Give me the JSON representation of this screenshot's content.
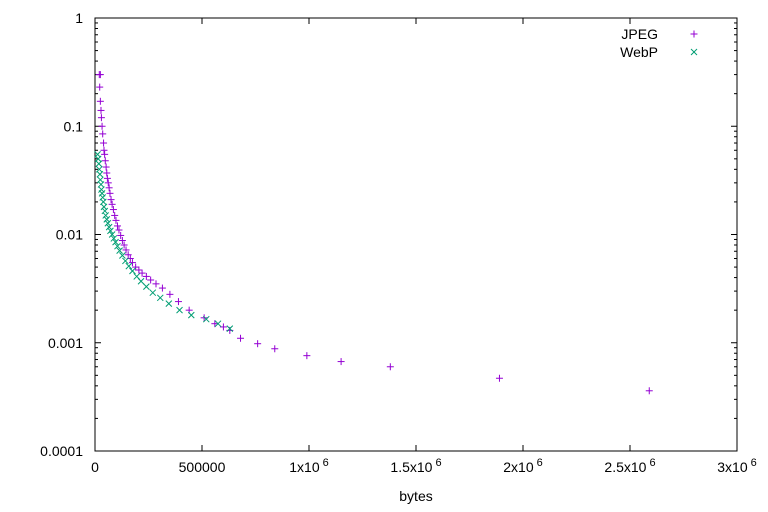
{
  "chart_data": {
    "type": "scatter",
    "title": "",
    "xlabel": "bytes",
    "ylabel": "",
    "xlim": [
      0,
      3000000
    ],
    "ylim": [
      0.0001,
      1
    ],
    "y_scale": "log",
    "grid": false,
    "legend_position": "top-right",
    "x_ticks": [
      {
        "value": 0,
        "label": "0"
      },
      {
        "value": 500000,
        "label": "500000"
      },
      {
        "value": 1000000,
        "base": "1x10",
        "exp": "6"
      },
      {
        "value": 1500000,
        "base": "1.5x10",
        "exp": "6"
      },
      {
        "value": 2000000,
        "base": "2x10",
        "exp": "6"
      },
      {
        "value": 2500000,
        "base": "2.5x10",
        "exp": "6"
      },
      {
        "value": 3000000,
        "base": "3x10",
        "exp": "6"
      }
    ],
    "y_ticks": [
      {
        "value": 1,
        "label": "1"
      },
      {
        "value": 0.1,
        "label": "0.1"
      },
      {
        "value": 0.01,
        "label": "0.01"
      },
      {
        "value": 0.001,
        "label": "0.001"
      },
      {
        "value": 0.0001,
        "label": "0.0001"
      }
    ],
    "series": [
      {
        "name": "JPEG",
        "marker": "plus",
        "color": "#9400d3",
        "points": [
          [
            20000,
            0.3
          ],
          [
            25000,
            0.3
          ],
          [
            22000,
            0.23
          ],
          [
            25000,
            0.17
          ],
          [
            28000,
            0.14
          ],
          [
            30000,
            0.12
          ],
          [
            33000,
            0.1
          ],
          [
            36000,
            0.085
          ],
          [
            40000,
            0.07
          ],
          [
            42000,
            0.06
          ],
          [
            45000,
            0.055
          ],
          [
            48000,
            0.048
          ],
          [
            52000,
            0.042
          ],
          [
            55000,
            0.037
          ],
          [
            58000,
            0.033
          ],
          [
            62000,
            0.03
          ],
          [
            66000,
            0.027
          ],
          [
            70000,
            0.024
          ],
          [
            75000,
            0.021
          ],
          [
            80000,
            0.019
          ],
          [
            86000,
            0.017
          ],
          [
            92000,
            0.015
          ],
          [
            98000,
            0.0135
          ],
          [
            105000,
            0.012
          ],
          [
            112000,
            0.011
          ],
          [
            120000,
            0.0098
          ],
          [
            128000,
            0.0088
          ],
          [
            136000,
            0.008
          ],
          [
            145000,
            0.0072
          ],
          [
            155000,
            0.0065
          ],
          [
            165000,
            0.006
          ],
          [
            175000,
            0.0055
          ],
          [
            190000,
            0.005
          ],
          [
            205000,
            0.0047
          ],
          [
            220000,
            0.0044
          ],
          [
            240000,
            0.0041
          ],
          [
            260000,
            0.0038
          ],
          [
            285000,
            0.0035
          ],
          [
            315000,
            0.0032
          ],
          [
            350000,
            0.0028
          ],
          [
            390000,
            0.0024
          ],
          [
            440000,
            0.002
          ],
          [
            510000,
            0.0017
          ],
          [
            560000,
            0.0015
          ],
          [
            600000,
            0.0014
          ],
          [
            630000,
            0.0013
          ],
          [
            680000,
            0.0011
          ],
          [
            760000,
            0.00098
          ],
          [
            840000,
            0.00088
          ],
          [
            990000,
            0.00076
          ],
          [
            1150000,
            0.00067
          ],
          [
            1380000,
            0.0006
          ],
          [
            1890000,
            0.00047
          ],
          [
            2590000,
            0.00036
          ]
        ]
      },
      {
        "name": "WebP",
        "marker": "cross",
        "color": "#009e73",
        "points": [
          [
            12000,
            0.055
          ],
          [
            15000,
            0.05
          ],
          [
            18000,
            0.045
          ],
          [
            20000,
            0.04
          ],
          [
            23000,
            0.036
          ],
          [
            25000,
            0.032
          ],
          [
            28000,
            0.029
          ],
          [
            30000,
            0.026
          ],
          [
            33000,
            0.024
          ],
          [
            36000,
            0.022
          ],
          [
            39000,
            0.02
          ],
          [
            42000,
            0.018
          ],
          [
            46000,
            0.0165
          ],
          [
            50000,
            0.015
          ],
          [
            55000,
            0.0138
          ],
          [
            60000,
            0.0127
          ],
          [
            66000,
            0.0117
          ],
          [
            72000,
            0.0108
          ],
          [
            80000,
            0.01
          ],
          [
            88000,
            0.0092
          ],
          [
            96000,
            0.0085
          ],
          [
            105000,
            0.0078
          ],
          [
            115000,
            0.0071
          ],
          [
            128000,
            0.0064
          ],
          [
            142000,
            0.0057
          ],
          [
            158000,
            0.0051
          ],
          [
            175000,
            0.0046
          ],
          [
            195000,
            0.0041
          ],
          [
            215000,
            0.0037
          ],
          [
            240000,
            0.0033
          ],
          [
            270000,
            0.0029
          ],
          [
            305000,
            0.0026
          ],
          [
            345000,
            0.0023
          ],
          [
            395000,
            0.002
          ],
          [
            450000,
            0.0018
          ],
          [
            520000,
            0.00165
          ],
          [
            575000,
            0.0015
          ],
          [
            630000,
            0.00135
          ]
        ]
      }
    ]
  }
}
